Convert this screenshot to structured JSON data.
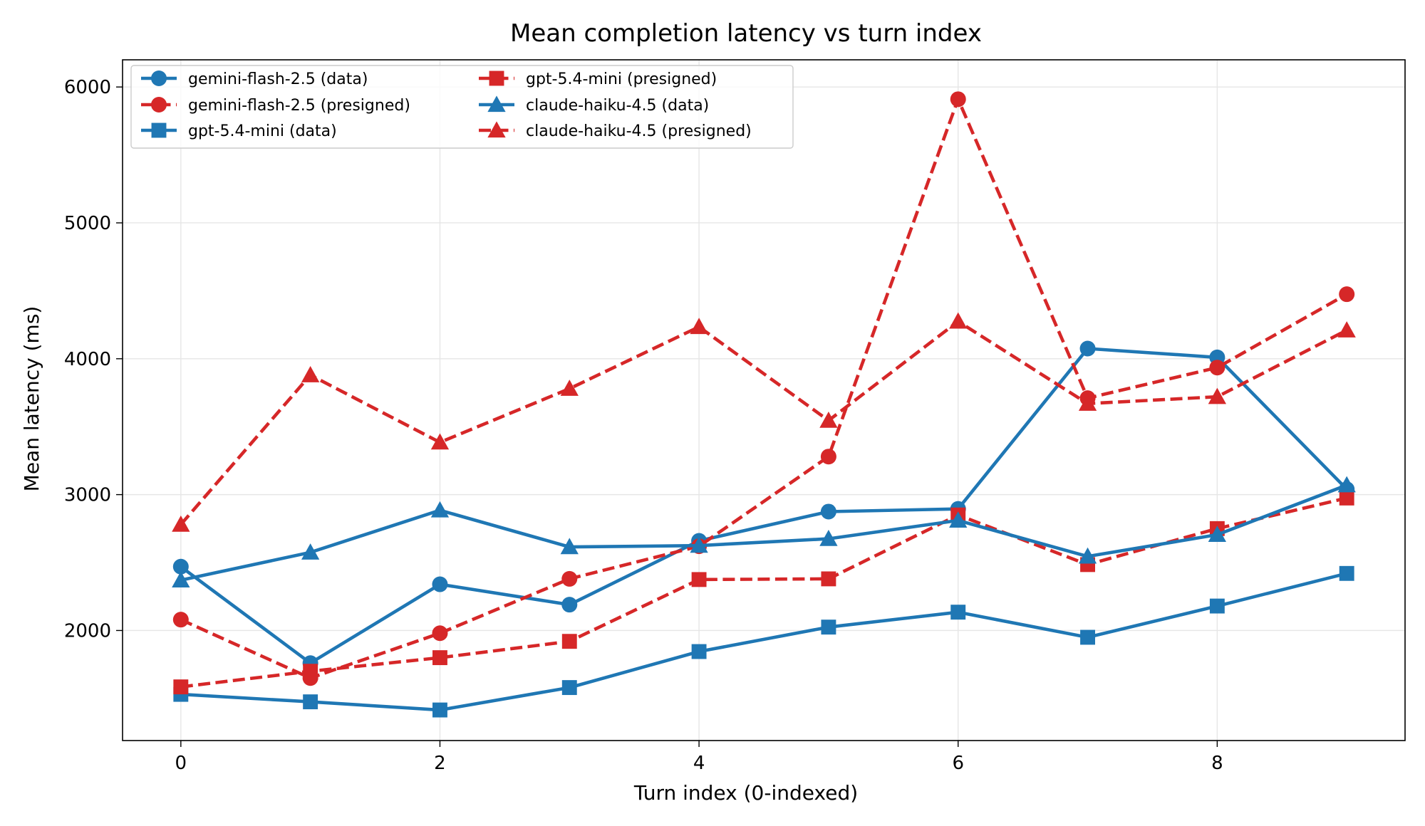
{
  "chart_data": {
    "type": "line",
    "title": "Mean completion latency vs turn index",
    "xlabel": "Turn index (0-indexed)",
    "ylabel": "Mean latency (ms)",
    "x": [
      0,
      1,
      2,
      3,
      4,
      5,
      6,
      7,
      8,
      9
    ],
    "xlim": [
      -0.45,
      9.45
    ],
    "ylim": [
      1190,
      6200
    ],
    "xticks": [
      0,
      2,
      4,
      6,
      8
    ],
    "yticks": [
      2000,
      3000,
      4000,
      5000,
      6000
    ],
    "grid": true,
    "legend_position": "top-left",
    "legend_columns": 2,
    "colors": {
      "data": "#1f77b4",
      "presigned": "#d62728"
    },
    "series": [
      {
        "name": "gemini-flash-2.5 (data)",
        "color": "#1f77b4",
        "linestyle": "solid",
        "marker": "circle",
        "values": [
          2470,
          1760,
          2340,
          2190,
          2660,
          2875,
          2895,
          4075,
          4010,
          3040
        ]
      },
      {
        "name": "gemini-flash-2.5 (presigned)",
        "color": "#d62728",
        "linestyle": "dashed",
        "marker": "circle",
        "values": [
          2080,
          1650,
          1980,
          2380,
          2620,
          3280,
          5910,
          3710,
          3935,
          4475
        ]
      },
      {
        "name": "gpt-5.4-mini (data)",
        "color": "#1f77b4",
        "linestyle": "solid",
        "marker": "square",
        "values": [
          1530,
          1475,
          1415,
          1580,
          1845,
          2025,
          2135,
          1950,
          2180,
          2420
        ]
      },
      {
        "name": "gpt-5.4-mini (presigned)",
        "color": "#d62728",
        "linestyle": "dashed",
        "marker": "square",
        "values": [
          1585,
          1700,
          1800,
          1920,
          2375,
          2380,
          2850,
          2485,
          2750,
          2975
        ]
      },
      {
        "name": "claude-haiku-4.5 (data)",
        "color": "#1f77b4",
        "linestyle": "solid",
        "marker": "triangle",
        "values": [
          2370,
          2575,
          2885,
          2615,
          2625,
          2675,
          2810,
          2545,
          2705,
          3070
        ]
      },
      {
        "name": "claude-haiku-4.5 (presigned)",
        "color": "#d62728",
        "linestyle": "dashed",
        "marker": "triangle",
        "values": [
          2780,
          3880,
          3385,
          3780,
          4235,
          3545,
          4275,
          3670,
          3720,
          4210
        ]
      }
    ]
  }
}
